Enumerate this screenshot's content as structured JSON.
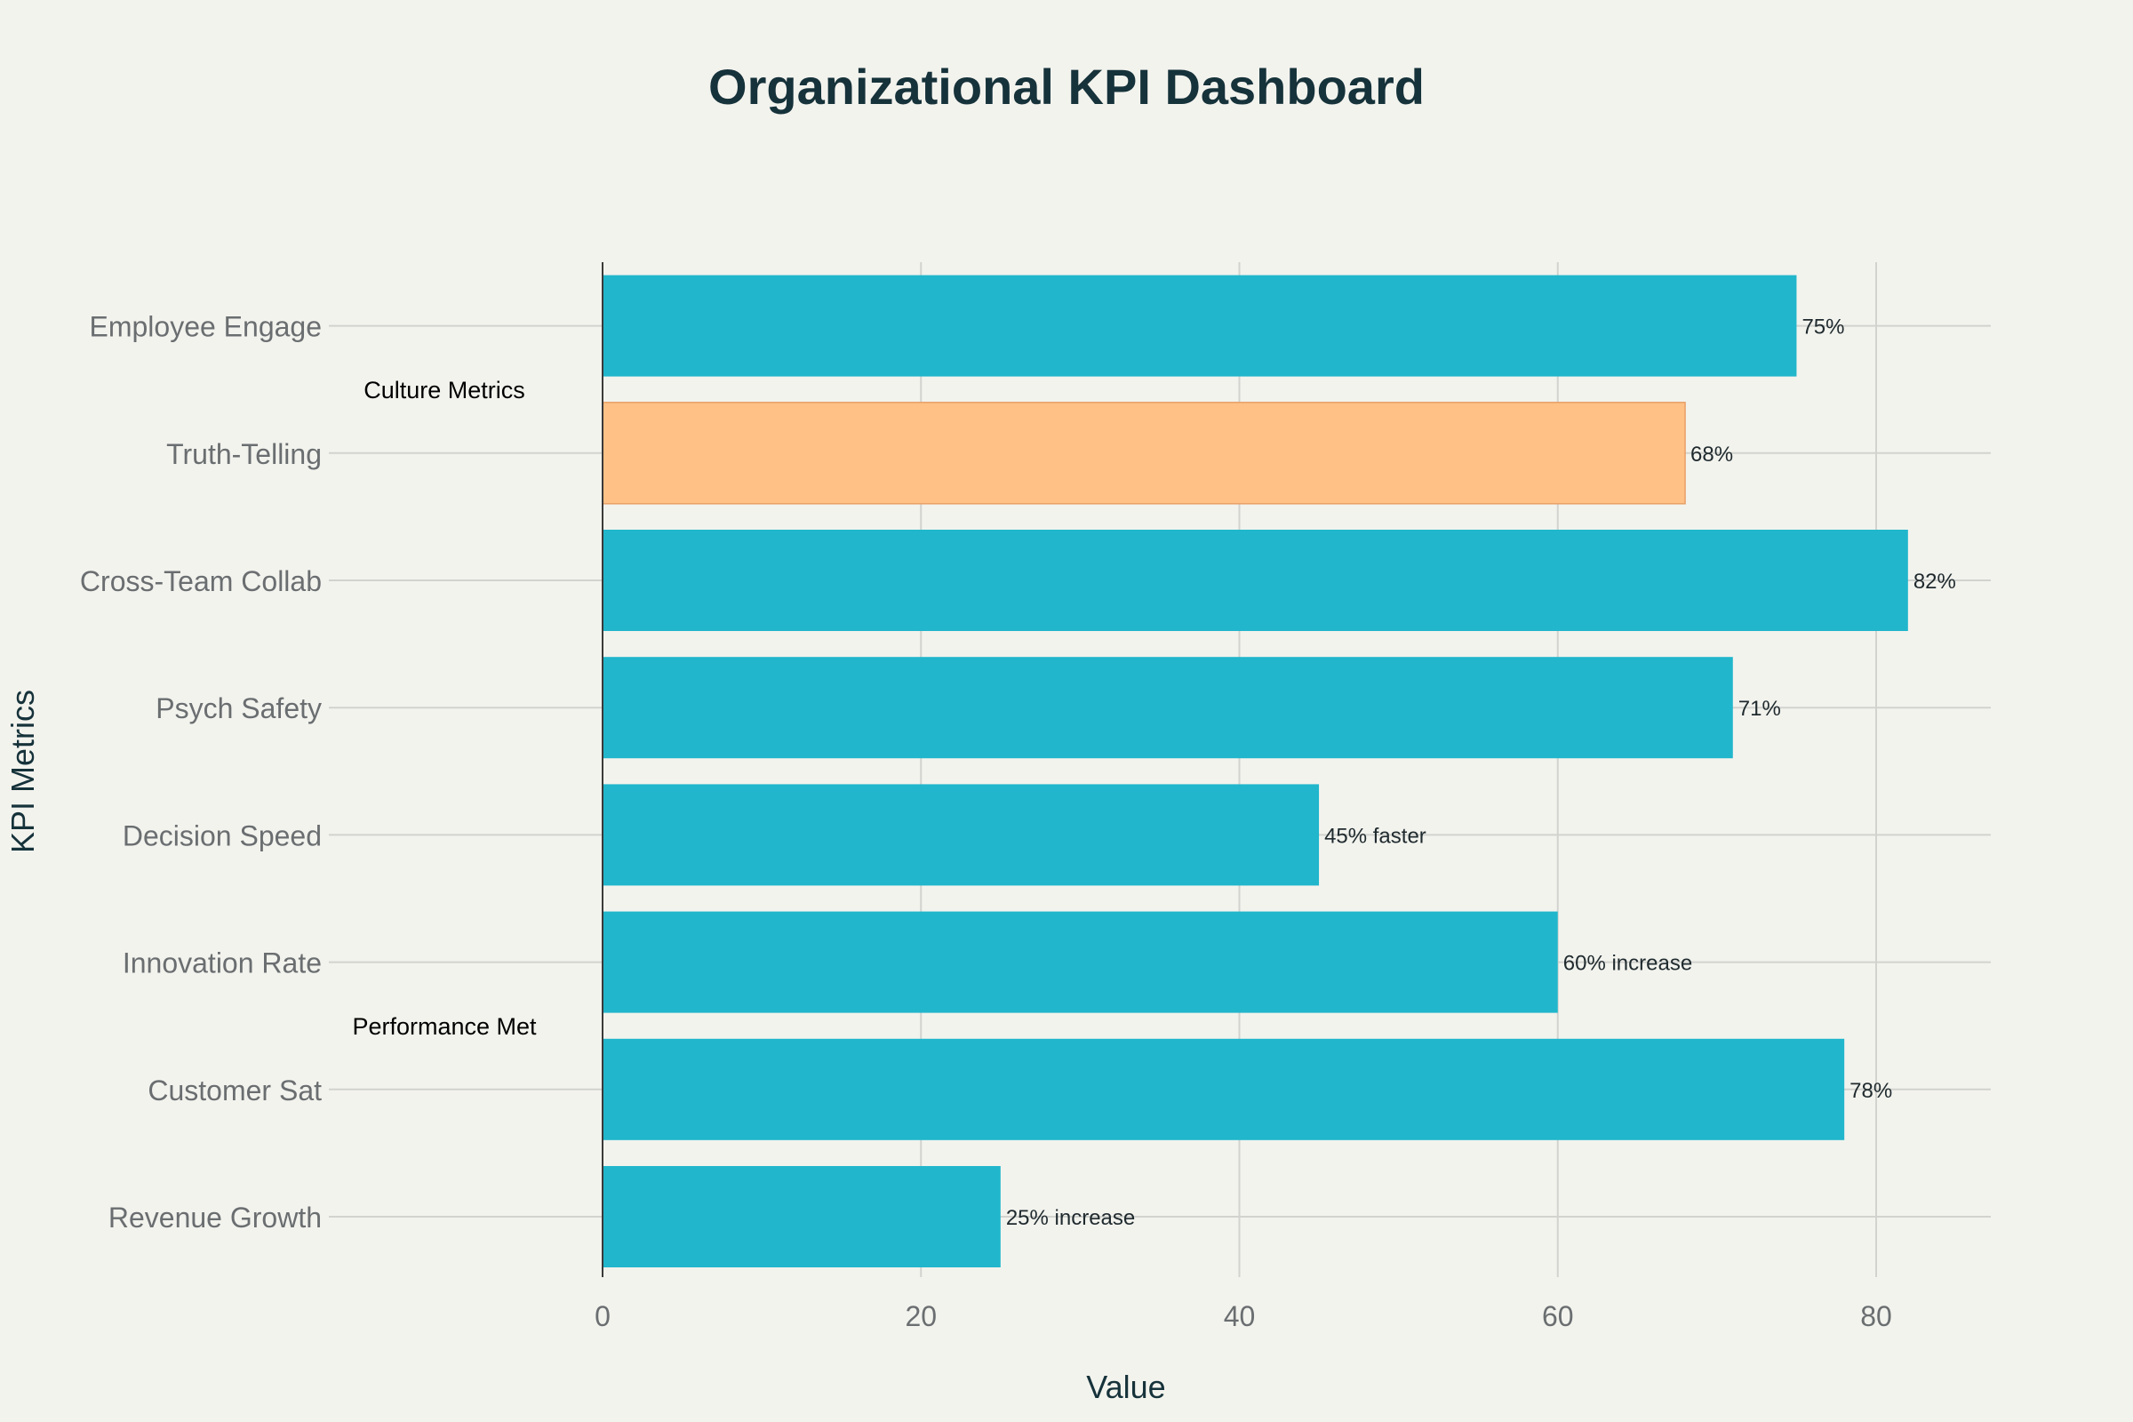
{
  "chart_data": {
    "type": "bar",
    "orientation": "horizontal",
    "title": "Organizational KPI Dashboard",
    "xlabel": "Value",
    "ylabel": "KPI Metrics",
    "xlim": [
      0,
      87
    ],
    "xticks": [
      0,
      20,
      40,
      60,
      80
    ],
    "grid": true,
    "categories": [
      "Employee Engage",
      "Truth-Telling",
      "Cross-Team Collab",
      "Psych Safety",
      "Decision Speed",
      "Innovation Rate",
      "Customer Sat",
      "Revenue Growth"
    ],
    "values": [
      75,
      68,
      82,
      71,
      45,
      60,
      78,
      25
    ],
    "labels": [
      "75%",
      "68%",
      "82%",
      "71%",
      "45% faster",
      "60% increase",
      "78%",
      "25% increase"
    ],
    "colors": [
      "#21b6cb",
      "#ffc185",
      "#21b6cb",
      "#21b6cb",
      "#21b6cb",
      "#21b6cb",
      "#21b6cb",
      "#21b6cb"
    ],
    "annotations": [
      {
        "text": "Culture Metrics",
        "near_category": "Truth-Telling"
      },
      {
        "text": "Performance Met",
        "near_category": "Customer Sat"
      }
    ]
  },
  "colors": {
    "background": "#f3f3ee",
    "primary_bar": "#21b6cb",
    "highlight_bar": "#ffc185",
    "title": "#16323a"
  }
}
